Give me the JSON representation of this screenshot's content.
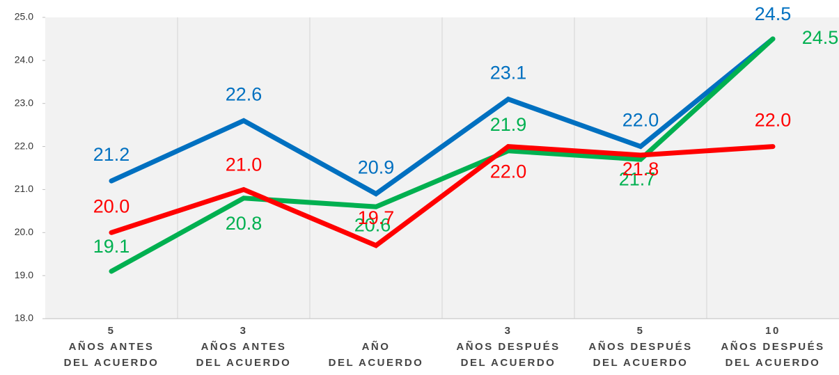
{
  "chart_data": {
    "type": "line",
    "categories": [
      [
        "5",
        "AÑOS ANTES",
        "DEL ACUERDO"
      ],
      [
        "3",
        "AÑOS ANTES",
        "DEL ACUERDO"
      ],
      [
        "AÑO",
        "DEL ACUERDO"
      ],
      [
        "3",
        "AÑOS DESPUÉS",
        "DEL ACUERDO"
      ],
      [
        "5",
        "AÑOS DESPUÉS",
        "DEL ACUERDO"
      ],
      [
        "10",
        "AÑOS DESPUÉS",
        "DEL ACUERDO"
      ]
    ],
    "series": [
      {
        "color": "#0070c0",
        "values": [
          21.2,
          22.6,
          20.9,
          23.1,
          22.0,
          24.5
        ],
        "value_labels": [
          "21.2",
          "22.6",
          "20.9",
          "23.1",
          "22.0",
          "24.5"
        ]
      },
      {
        "color": "#00b050",
        "values": [
          19.1,
          20.8,
          20.6,
          21.9,
          21.7,
          24.5
        ],
        "value_labels": [
          "19.1",
          "20.8",
          "20.6",
          "21.9",
          "21.7",
          "24.5"
        ]
      },
      {
        "color": "#ff0000",
        "values": [
          20.0,
          21.0,
          19.7,
          22.0,
          21.8,
          22.0
        ],
        "value_labels": [
          "20.0",
          "21.0",
          "19.7",
          "22.0",
          "21.8",
          "22.0"
        ]
      }
    ],
    "ylim": [
      18,
      25
    ],
    "yticks": [
      {
        "value": 18,
        "label": "18.0"
      },
      {
        "value": 19,
        "label": "19.0"
      },
      {
        "value": 20,
        "label": "20.0"
      },
      {
        "value": 21,
        "label": "21.0"
      },
      {
        "value": 22,
        "label": "22.0"
      },
      {
        "value": 23,
        "label": "23.0"
      },
      {
        "value": 24,
        "label": "24.0"
      },
      {
        "value": 25,
        "label": "25.0"
      }
    ]
  }
}
